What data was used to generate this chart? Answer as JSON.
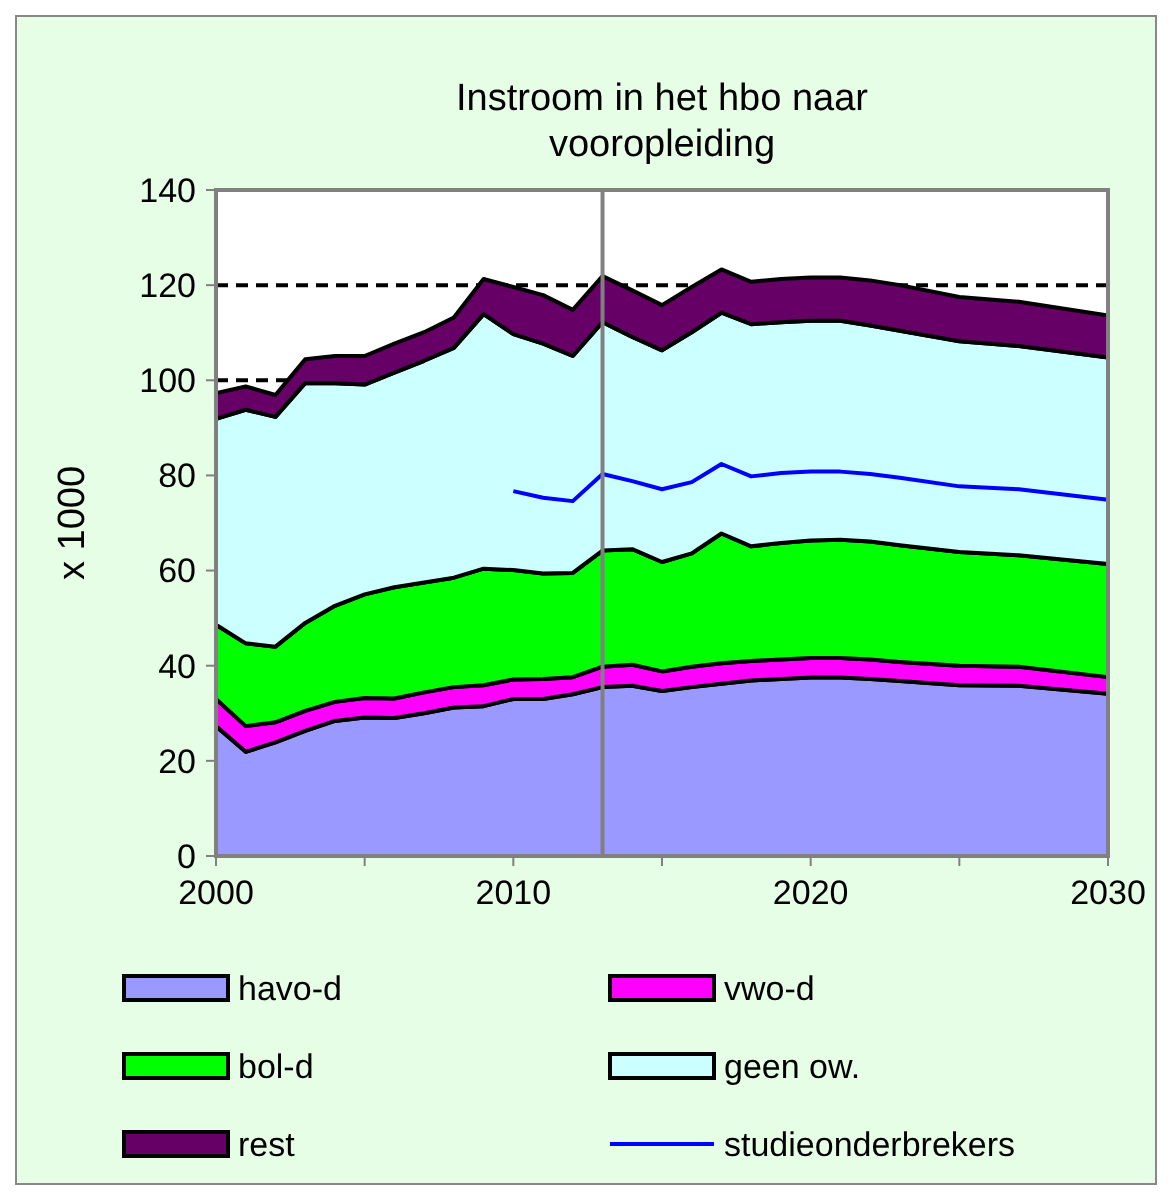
{
  "chart_data": {
    "type": "area",
    "title": "Instroom in het hbo naar vooropleiding",
    "ylabel": "x 1000",
    "stacked": true,
    "x": [
      2000,
      2001,
      2002,
      2003,
      2004,
      2005,
      2006,
      2007,
      2008,
      2009,
      2010,
      2011,
      2012,
      2013,
      2014,
      2015,
      2016,
      2017,
      2018,
      2019,
      2020,
      2021,
      2022,
      2023,
      2025,
      2027,
      2030
    ],
    "series": [
      {
        "name": "havo-d",
        "color": "#9999ff",
        "values": [
          27.3,
          21.9,
          23.9,
          26.3,
          28.4,
          29.1,
          29,
          30,
          31.2,
          31.5,
          33,
          33,
          34,
          35.5,
          35.8,
          34.7,
          35.5,
          36.2,
          36.9,
          37.2,
          37.5,
          37.5,
          37.2,
          36.8,
          35.9,
          35.8,
          34.1
        ]
      },
      {
        "name": "vwo-d",
        "color": "#ff00ff",
        "values": [
          5.7,
          5.4,
          4.2,
          4.2,
          4,
          4.1,
          4.1,
          4.4,
          4.3,
          4.4,
          4.1,
          4.2,
          3.6,
          4.3,
          4.4,
          4.1,
          4.3,
          4.3,
          4.1,
          4.1,
          4.1,
          4.1,
          4.1,
          4,
          4.1,
          4,
          3.5
        ]
      },
      {
        "name": "bol-d",
        "color": "#00ff00",
        "values": [
          15.6,
          17.4,
          15.9,
          18.5,
          20.2,
          21.8,
          23.4,
          23.1,
          23,
          24.5,
          23,
          22.2,
          21.9,
          24.4,
          24.3,
          23,
          23.8,
          27.3,
          24.1,
          24.5,
          24.7,
          24.9,
          24.8,
          24.5,
          23.9,
          23.4,
          23.8
        ]
      },
      {
        "name": "geen ow.",
        "color": "#ccffff",
        "values": [
          43.3,
          49.1,
          48.3,
          50.4,
          46.8,
          44.1,
          45.1,
          46.6,
          48.3,
          53.5,
          49.6,
          48.3,
          45.6,
          48,
          44.6,
          44.5,
          46.5,
          46.4,
          46.7,
          46.4,
          46.2,
          46,
          45.4,
          45.1,
          44.3,
          44,
          43.4
        ]
      },
      {
        "name": "rest",
        "color": "#660066",
        "values": [
          5.4,
          4.9,
          4.6,
          5,
          5.7,
          6,
          6.1,
          6,
          6.4,
          7.4,
          9.9,
          10.2,
          9.7,
          9.7,
          9.8,
          9.5,
          9.5,
          9.1,
          8.9,
          9.1,
          9.1,
          9.1,
          9.5,
          9.6,
          9.3,
          9.3,
          8.8
        ]
      },
      {
        "name": "studieonderbrekers",
        "type": "line",
        "color": "#0000ff",
        "values": [
          null,
          null,
          null,
          null,
          null,
          null,
          null,
          null,
          null,
          null,
          76.7,
          75.3,
          74.6,
          80.3,
          78.8,
          77.1,
          78.6,
          82.4,
          79.8,
          80.5,
          80.8,
          80.8,
          80.3,
          79.5,
          77.7,
          77.1,
          74.9
        ]
      }
    ],
    "xlim": [
      2000,
      2030
    ],
    "xticks": [
      2000,
      {
        "value": 2005,
        "label": null
      },
      2010,
      {
        "value": 2015,
        "label": null
      },
      2020,
      {
        "value": 2025,
        "label": null
      },
      2030
    ],
    "ylim": [
      0,
      140
    ],
    "yticks": [
      0,
      20,
      40,
      60,
      80,
      100,
      120,
      140
    ],
    "ref_lines": [
      {
        "axis": "y",
        "value": 120,
        "line_style": "dashed",
        "color": "#000000"
      },
      {
        "axis": "y",
        "value": 100,
        "line_style": "dashed",
        "color": "#000000"
      },
      {
        "axis": "x",
        "value": 2013,
        "line_style": "solid",
        "color": "#808080"
      }
    ],
    "grid": false,
    "legend": "bottom"
  }
}
